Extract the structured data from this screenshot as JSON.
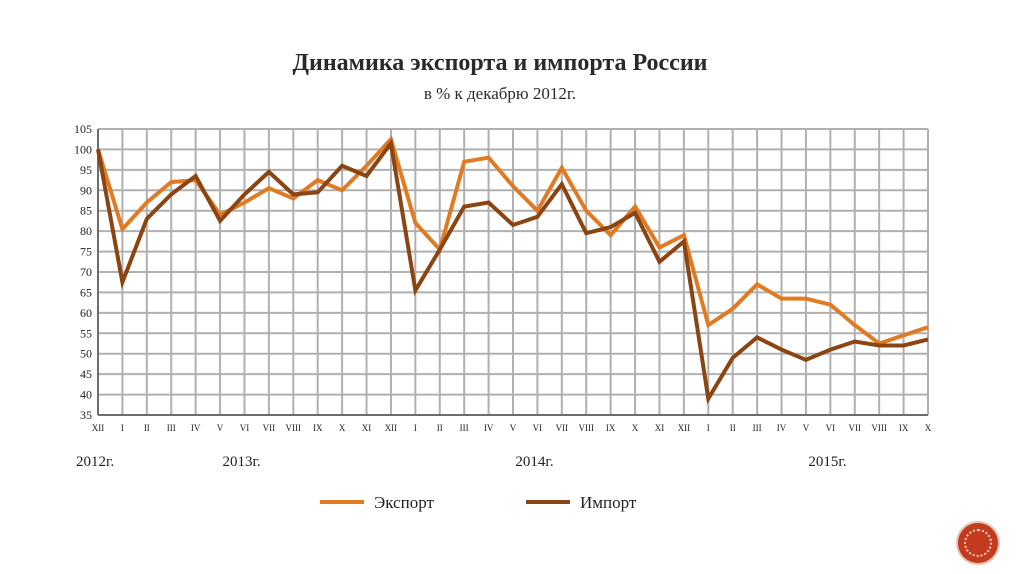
{
  "chart_data": {
    "type": "line",
    "title": "Динамика экспорта и импорта России",
    "subtitle": "в % к декабрю 2012г.",
    "ylim": [
      35,
      105
    ],
    "y_ticks": [
      35,
      40,
      45,
      50,
      55,
      60,
      65,
      70,
      75,
      80,
      85,
      90,
      95,
      100,
      105
    ],
    "grid": true,
    "legend_position": "bottom",
    "categories": [
      "XII",
      "I",
      "II",
      "III",
      "IV",
      "V",
      "VI",
      "VII",
      "VIII",
      "IX",
      "X",
      "XI",
      "XII",
      "I",
      "II",
      "III",
      "IV",
      "V",
      "VI",
      "VII",
      "VIII",
      "IX",
      "X",
      "XI",
      "XII",
      "I",
      "II",
      "III",
      "IV",
      "V",
      "VI",
      "VII",
      "VIII",
      "IX",
      "X"
    ],
    "year_labels": [
      {
        "label": "2012г.",
        "index": 0
      },
      {
        "label": "2013г.",
        "index": 6
      },
      {
        "label": "2014г.",
        "index": 18
      },
      {
        "label": "2015г.",
        "index": 30
      }
    ],
    "series": [
      {
        "name": "Экспорт",
        "color": "#e07b24",
        "values": [
          100,
          80.5,
          87,
          92,
          92.5,
          84,
          87,
          90.5,
          88,
          92.5,
          90,
          96,
          102.5,
          82,
          75.5,
          97,
          98,
          91,
          85,
          95.5,
          85,
          79,
          86,
          76,
          79,
          57,
          61,
          67,
          63.5,
          63.5,
          62,
          57,
          52.5,
          54.5,
          56.5
        ]
      },
      {
        "name": "Импорт",
        "color": "#8b4513",
        "values": [
          100,
          67.5,
          83,
          89,
          93.5,
          82.5,
          89,
          94.5,
          89,
          89.5,
          96,
          93.5,
          101.5,
          65.5,
          75.5,
          86,
          87,
          81.5,
          83.5,
          91.5,
          79.5,
          81,
          84.5,
          72.5,
          77.5,
          39,
          49,
          54,
          51,
          48.5,
          51,
          53,
          52,
          52,
          53.5
        ]
      }
    ]
  },
  "navigation": {
    "icon": "circle-nav-icon",
    "accent": "#c43a1f"
  }
}
